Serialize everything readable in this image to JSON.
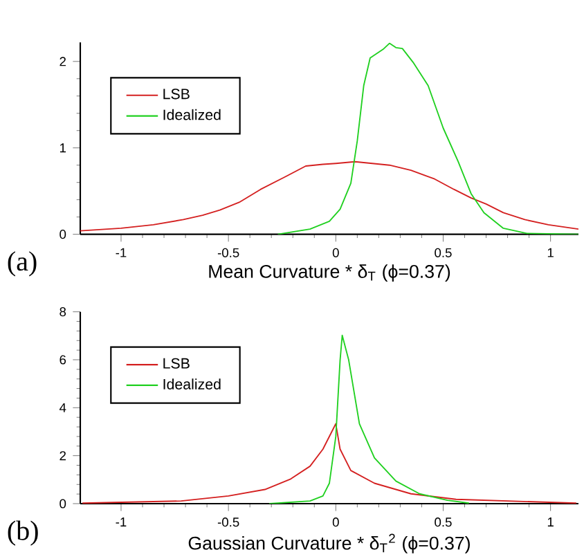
{
  "chart_data": [
    {
      "type": "line",
      "xlabel": "Mean Curvature * δ$_{T}$ (ϕ=0.37)",
      "annotations": [
        "(a)"
      ],
      "legend": "top left",
      "marker": "none",
      "line_style": "solid",
      "grid": false,
      "xlim": [
        -1.19,
        1.13
      ],
      "ylim": [
        0,
        2.22
      ],
      "xticks": [
        -1,
        -0.5,
        0,
        0.5,
        1
      ],
      "yticks": [
        0,
        1,
        2
      ],
      "series": [
        {
          "name": "LSB",
          "color": "#d42020",
          "x": [
            -1.19,
            -1,
            -0.85,
            -0.71,
            -0.62,
            -0.54,
            -0.45,
            -0.35,
            -0.24,
            -0.14,
            -0.06,
            0,
            0.09,
            0.17,
            0.25,
            0.35,
            0.46,
            0.55,
            0.63,
            0.7,
            0.78,
            0.88,
            0.99,
            1.13
          ],
          "values": [
            0.04,
            0.07,
            0.11,
            0.17,
            0.22,
            0.28,
            0.37,
            0.52,
            0.66,
            0.79,
            0.81,
            0.82,
            0.84,
            0.82,
            0.8,
            0.74,
            0.64,
            0.52,
            0.42,
            0.35,
            0.25,
            0.17,
            0.11,
            0.06
          ]
        },
        {
          "name": "Idealized",
          "color": "#20d020",
          "x": [
            -0.27,
            -0.12,
            -0.03,
            0.02,
            0.07,
            0.1,
            0.13,
            0.16,
            0.22,
            0.25,
            0.28,
            0.31,
            0.36,
            0.43,
            0.5,
            0.57,
            0.63,
            0.69,
            0.78,
            0.89,
            1.13
          ],
          "values": [
            0,
            0.06,
            0.15,
            0.29,
            0.59,
            1.08,
            1.72,
            2.04,
            2.14,
            2.21,
            2.16,
            2.15,
            1.99,
            1.72,
            1.23,
            0.84,
            0.47,
            0.25,
            0.07,
            0.01,
            0
          ]
        }
      ]
    },
    {
      "type": "line",
      "xlabel": "Gaussian Curvature * δ$_{T}$$^{2}$ (ϕ=0.37)",
      "annotations": [
        "(b)"
      ],
      "legend": "top left",
      "marker": "none",
      "line_style": "solid",
      "grid": false,
      "xlim": [
        -1.19,
        1.13
      ],
      "ylim": [
        0,
        8
      ],
      "xticks": [
        -1,
        -0.5,
        0,
        0.5,
        1
      ],
      "yticks": [
        0,
        2,
        4,
        6,
        8
      ],
      "series": [
        {
          "name": "LSB",
          "color": "#d42020",
          "x": [
            -1.18,
            -0.72,
            -0.5,
            -0.33,
            -0.21,
            -0.12,
            -0.06,
            0,
            0.02,
            0.07,
            0.18,
            0.35,
            0.56,
            1.12
          ],
          "values": [
            0.02,
            0.11,
            0.32,
            0.59,
            1.03,
            1.56,
            2.27,
            3.33,
            2.27,
            1.38,
            0.85,
            0.41,
            0.18,
            0.02
          ]
        },
        {
          "name": "Idealized",
          "color": "#20d020",
          "x": [
            -0.31,
            -0.12,
            -0.06,
            -0.03,
            0,
            0.02,
            0.03,
            0.06,
            0.11,
            0.18,
            0.28,
            0.39,
            0.52,
            0.62
          ],
          "values": [
            0,
            0.11,
            0.32,
            0.85,
            2.8,
            5.99,
            7.02,
            5.99,
            3.33,
            1.91,
            0.94,
            0.41,
            0.14,
            0.02
          ]
        }
      ]
    }
  ]
}
